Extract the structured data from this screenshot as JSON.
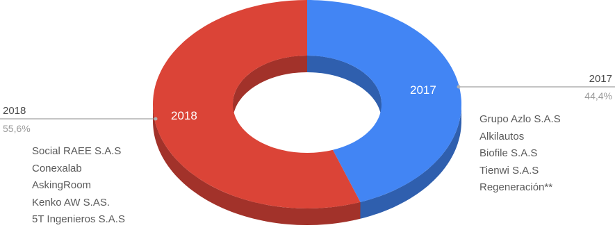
{
  "chart_data": {
    "type": "pie",
    "style": "donut-3d",
    "categories": [
      "2017",
      "2018"
    ],
    "values": [
      44.4,
      55.6
    ],
    "percent_labels": [
      "44,4%",
      "55,6%"
    ],
    "slice_labels": [
      "2017",
      "2018"
    ],
    "colors": {
      "2017": {
        "top": "#4285f4",
        "side": "#2f5fae"
      },
      "2018": {
        "top": "#db4437",
        "side": "#a2322a"
      }
    },
    "legend": "callouts"
  },
  "companies_2017": [
    "Grupo Azlo S.A.S",
    "Alkilautos",
    "Biofile S.A.S",
    "Tienwi S.A.S",
    "Regeneración**"
  ],
  "companies_2018": [
    "Social RAEE S.A.S",
    "Conexalab",
    "AskingRoom",
    "Kenko AW S.AS.",
    "5T Ingenieros S.A.S"
  ]
}
